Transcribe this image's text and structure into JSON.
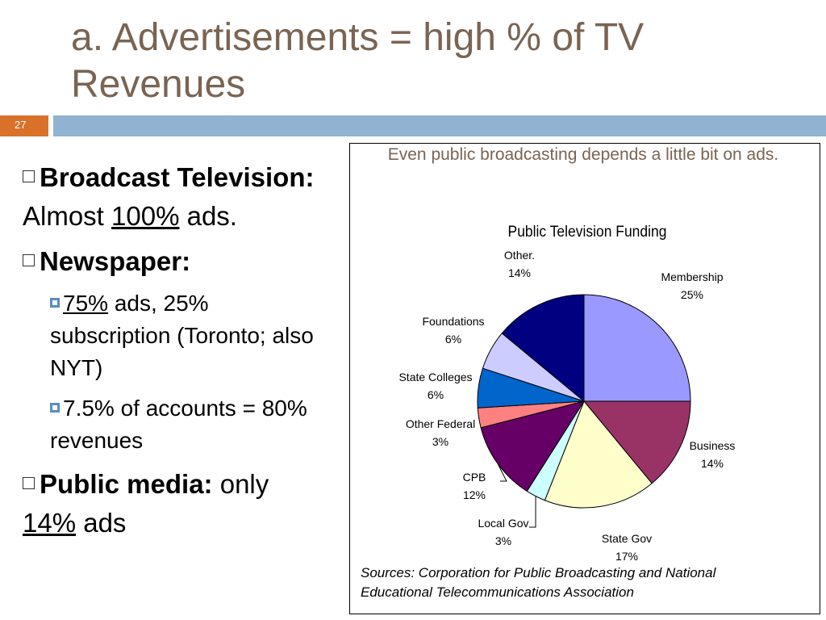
{
  "slide": {
    "title": "a. Advertisements = high % of TV Revenues",
    "number": "27"
  },
  "bullets": {
    "b1_bold": "Broadcast Television:",
    "b1_rest_pre": " Almost ",
    "b1_underline": "100%",
    "b1_rest_post": " ads.",
    "b2_bold": "Newspaper:",
    "sub1_underline": "75%",
    "sub1_rest": " ads, 25% subscription (Toronto; also NYT)",
    "sub2": "7.5% of accounts = 80% revenues",
    "b3_bold": "Public media:",
    "b3_rest": " only ",
    "b3_underline": "14%",
    "b3_post": " ads"
  },
  "chart_caption": "Even public broadcasting depends a little bit on ads.",
  "sources": "Sources: Corporation for Public Broadcasting and National Educational Telecommunications Association",
  "chart_data": {
    "type": "pie",
    "title": "Public Television Funding",
    "slices": [
      {
        "label": "Membership",
        "value": 25,
        "pct_label": "25%",
        "color": "#9999ff"
      },
      {
        "label": "Business",
        "value": 14,
        "pct_label": "14%",
        "color": "#993366"
      },
      {
        "label": "State Gov",
        "value": 17,
        "pct_label": "17%",
        "color": "#ffffcc"
      },
      {
        "label": "Local Gov",
        "value": 3,
        "pct_label": "3%",
        "color": "#ccffff"
      },
      {
        "label": "CPB",
        "value": 12,
        "pct_label": "12%",
        "color": "#660066"
      },
      {
        "label": "Other Federal",
        "value": 3,
        "pct_label": "3%",
        "color": "#ff8080"
      },
      {
        "label": "State Colleges",
        "value": 6,
        "pct_label": "6%",
        "color": "#0066cc"
      },
      {
        "label": "Foundations",
        "value": 6,
        "pct_label": "6%",
        "color": "#ccccff"
      },
      {
        "label": "Other.",
        "value": 14,
        "pct_label": "14%",
        "color": "#000080"
      }
    ]
  }
}
